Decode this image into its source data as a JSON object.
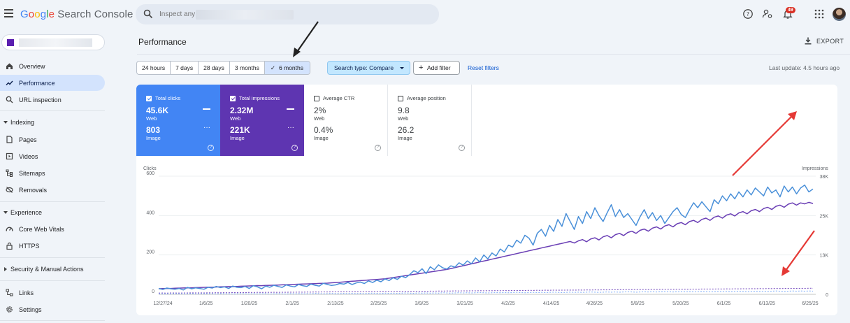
{
  "header": {
    "app_name_parts": [
      "G",
      "o",
      "o",
      "g",
      "l",
      "e"
    ],
    "app_name_rest": " Search Console",
    "search_placeholder": "Inspect any",
    "notification_count": "49"
  },
  "sidebar": {
    "items": [
      {
        "label": "Overview",
        "icon": "home-icon"
      },
      {
        "label": "Performance",
        "icon": "trending-up-icon",
        "active": true
      },
      {
        "label": "URL inspection",
        "icon": "search-icon"
      }
    ],
    "sections": {
      "indexing": {
        "label": "Indexing",
        "items": [
          {
            "label": "Pages",
            "icon": "pages-icon"
          },
          {
            "label": "Videos",
            "icon": "videos-icon"
          },
          {
            "label": "Sitemaps",
            "icon": "sitemap-icon"
          },
          {
            "label": "Removals",
            "icon": "removals-icon"
          }
        ]
      },
      "experience": {
        "label": "Experience",
        "items": [
          {
            "label": "Core Web Vitals",
            "icon": "speed-icon"
          },
          {
            "label": "HTTPS",
            "icon": "lock-icon"
          }
        ]
      },
      "security": {
        "label": "Security & Manual Actions"
      },
      "bottom": [
        {
          "label": "Links",
          "icon": "link-icon"
        },
        {
          "label": "Settings",
          "icon": "gear-icon"
        }
      ]
    }
  },
  "main": {
    "title": "Performance",
    "export_label": "EXPORT",
    "date_ranges": [
      "24 hours",
      "7 days",
      "28 days",
      "3 months",
      "6 months"
    ],
    "selected_range": "6 months",
    "search_type_label": "Search type: Compare",
    "add_filter_label": "Add filter",
    "reset_filters_label": "Reset filters",
    "last_update": "Last update: 4.5 hours ago"
  },
  "metrics": {
    "clicks": {
      "label": "Total clicks",
      "web_value": "45.6K",
      "web_label": "Web",
      "image_value": "803",
      "image_label": "Image",
      "checked": true,
      "color": "#4285f4"
    },
    "impressions": {
      "label": "Total impressions",
      "web_value": "2.32M",
      "web_label": "Web",
      "image_value": "221K",
      "image_label": "Image",
      "checked": true,
      "color": "#5e35b1"
    },
    "ctr": {
      "label": "Average CTR",
      "web_value": "2%",
      "web_label": "Web",
      "image_value": "0.4%",
      "image_label": "Image",
      "checked": false
    },
    "position": {
      "label": "Average position",
      "web_value": "9.8",
      "web_label": "Web",
      "image_value": "26.2",
      "image_label": "Image",
      "checked": false
    }
  },
  "chart_data": {
    "type": "line",
    "left_axis_label": "Clicks",
    "right_axis_label": "Impressions",
    "left_ticks": [
      "0",
      "200",
      "400",
      "600"
    ],
    "right_ticks": [
      "0",
      "13K",
      "25K",
      "38K"
    ],
    "ylim_left": [
      0,
      600
    ],
    "ylim_right": [
      0,
      38000
    ],
    "x_ticks": [
      "12/27/24",
      "1/6/25",
      "1/20/25",
      "2/1/25",
      "2/13/25",
      "2/25/25",
      "3/9/25",
      "3/21/25",
      "4/2/25",
      "4/14/25",
      "4/26/25",
      "5/8/25",
      "5/20/25",
      "6/1/25",
      "6/13/25",
      "6/25/25"
    ],
    "series": [
      {
        "name": "Total clicks (Web)",
        "axis": "left",
        "color": "#4a90d9",
        "style": "solid",
        "values": [
          30,
          25,
          32,
          28,
          26,
          30,
          22,
          35,
          28,
          33,
          30,
          26,
          36,
          32,
          40,
          34,
          38,
          30,
          42,
          36,
          34,
          40,
          30,
          44,
          38,
          28,
          42,
          36,
          46,
          40,
          35,
          48,
          42,
          38,
          50,
          44,
          40,
          52,
          46,
          42,
          56,
          50,
          45,
          48,
          55,
          52,
          60,
          50,
          58,
          62,
          55,
          68,
          60,
          72,
          64,
          78,
          70,
          84,
          76,
          92,
          85,
          100,
          120,
          110,
          130,
          105,
          140,
          125,
          150,
          135,
          128,
          145,
          138,
          160,
          148,
          170,
          155,
          185,
          165,
          200,
          180,
          210,
          195,
          230,
          215,
          250,
          240,
          275,
          260,
          300,
          285,
          250,
          310,
          330,
          295,
          350,
          320,
          380,
          345,
          410,
          370,
          330,
          395,
          360,
          420,
          385,
          440,
          400,
          370,
          415,
          455,
          395,
          430,
          390,
          410,
          380,
          350,
          395,
          430,
          385,
          415,
          375,
          400,
          360,
          390,
          420,
          440,
          405,
          390,
          430,
          465,
          440,
          470,
          445,
          420,
          480,
          460,
          500,
          475,
          510,
          485,
          520,
          495,
          530,
          505,
          540,
          520,
          500,
          545,
          515,
          530,
          495,
          550,
          520,
          545,
          510,
          540,
          555,
          520,
          535
        ]
      },
      {
        "name": "Total clicks (Image)",
        "axis": "left",
        "color": "#8ab4f8",
        "style": "dashed",
        "values": [
          3,
          2,
          3,
          2,
          4,
          3,
          2,
          3,
          4,
          2,
          3,
          3,
          4,
          3,
          2,
          4,
          3,
          3,
          2,
          3,
          4,
          3,
          2,
          4,
          3,
          3,
          4,
          2,
          3,
          4,
          3,
          2,
          4,
          3,
          4,
          3,
          4,
          3,
          5,
          4,
          3,
          4,
          5,
          4,
          4,
          5,
          4,
          5,
          4,
          5,
          4,
          5,
          6,
          5,
          4,
          6,
          5,
          6,
          5,
          6,
          7,
          6,
          5,
          7,
          6,
          7,
          6,
          7,
          6,
          8,
          7,
          6,
          7,
          8,
          7,
          8,
          7,
          8,
          9,
          8,
          7,
          8,
          9,
          8,
          9,
          8,
          9,
          10,
          9,
          8,
          9,
          10,
          9,
          10,
          9,
          10,
          11,
          10,
          9,
          10,
          11,
          10,
          11,
          10,
          11,
          12,
          11,
          10,
          11,
          12,
          11,
          12,
          11,
          12,
          13,
          12,
          11,
          12,
          13,
          12,
          13,
          12,
          13,
          14,
          13,
          12,
          13,
          14,
          13,
          14,
          13,
          14,
          15,
          14,
          13,
          14,
          15,
          14,
          15,
          14,
          15,
          16,
          15,
          14,
          15,
          16,
          15,
          16,
          15,
          16,
          17,
          16,
          15,
          16,
          17,
          16,
          17,
          16,
          17,
          16
        ]
      },
      {
        "name": "Total impressions (Web)",
        "axis": "right",
        "color": "#6a3fb5",
        "style": "solid",
        "values": [
          1800,
          1850,
          1900,
          1880,
          1950,
          2000,
          2050,
          2100,
          2080,
          2150,
          2200,
          2250,
          2300,
          2280,
          2350,
          2400,
          2450,
          2500,
          2480,
          2550,
          2600,
          2650,
          2700,
          2750,
          2800,
          2780,
          2850,
          2900,
          2950,
          3000,
          3050,
          3100,
          3150,
          3200,
          3250,
          3300,
          3350,
          3400,
          3450,
          3500,
          3550,
          3600,
          3700,
          3800,
          3900,
          4000,
          4100,
          4200,
          4300,
          4400,
          4500,
          4600,
          4700,
          4800,
          4900,
          5000,
          5200,
          5400,
          5600,
          5800,
          6000,
          6200,
          6400,
          6600,
          6800,
          7000,
          7200,
          7400,
          7600,
          7800,
          8000,
          8300,
          8600,
          8900,
          9200,
          9500,
          9800,
          10100,
          10400,
          10700,
          11000,
          11300,
          11600,
          11900,
          12200,
          12500,
          12800,
          13100,
          13400,
          13700,
          14000,
          14300,
          14600,
          14900,
          15200,
          15500,
          15800,
          16100,
          16400,
          16700,
          17000,
          16500,
          17200,
          17600,
          16900,
          17800,
          18200,
          17500,
          18500,
          18900,
          18200,
          19200,
          19600,
          18900,
          19900,
          20300,
          19600,
          20600,
          21000,
          20300,
          21300,
          21700,
          21000,
          22000,
          22400,
          21700,
          22700,
          23100,
          22400,
          23400,
          23800,
          23100,
          24100,
          24500,
          23800,
          24800,
          25200,
          24500,
          25500,
          25900,
          25200,
          26200,
          26600,
          25900,
          26900,
          27300,
          26600,
          27600,
          28000,
          27300,
          28300,
          28700,
          28000,
          29000,
          29400,
          28700,
          29400,
          29100,
          29600,
          29200
        ]
      },
      {
        "name": "Total impressions (Image)",
        "axis": "right",
        "color": "#7e57c2",
        "style": "dashed",
        "values": [
          400,
          420,
          380,
          450,
          430,
          410,
          460,
          440,
          470,
          450,
          480,
          460,
          500,
          480,
          520,
          500,
          540,
          520,
          560,
          540,
          580,
          560,
          600,
          580,
          620,
          600,
          640,
          620,
          660,
          640,
          680,
          660,
          700,
          680,
          720,
          700,
          740,
          720,
          760,
          740,
          780,
          760,
          800,
          780,
          820,
          800,
          840,
          820,
          860,
          840,
          880,
          860,
          900,
          880,
          920,
          900,
          940,
          920,
          960,
          940,
          980,
          960,
          1000,
          980,
          1020,
          1000,
          1040,
          1020,
          1060,
          1040,
          1080,
          1060,
          1100,
          1080,
          1120,
          1100,
          1140,
          1120,
          1160,
          1140,
          1180,
          1160,
          1200,
          1180,
          1220,
          1200,
          1240,
          1220,
          1260,
          1240,
          1280,
          1260,
          1300,
          1280,
          1320,
          1300,
          1340,
          1320,
          1360,
          1340,
          1380,
          1360,
          1400,
          1380,
          1420,
          1400,
          1440,
          1420,
          1460,
          1440,
          1480,
          1460,
          1500,
          1480,
          1520,
          1500,
          1540,
          1520,
          1560,
          1540,
          1580,
          1560,
          1600,
          1580,
          1620,
          1600,
          1640,
          1620,
          1660,
          1640,
          1680,
          1660,
          1700,
          1680,
          1720,
          1700,
          1740,
          1720,
          1760,
          1740,
          1780,
          1760,
          1800,
          1780,
          1820,
          1800,
          1840,
          1820,
          1860,
          1840,
          1880,
          1860,
          1900,
          1880,
          1920,
          1900,
          1940,
          1920,
          1960,
          1940
        ]
      }
    ]
  }
}
